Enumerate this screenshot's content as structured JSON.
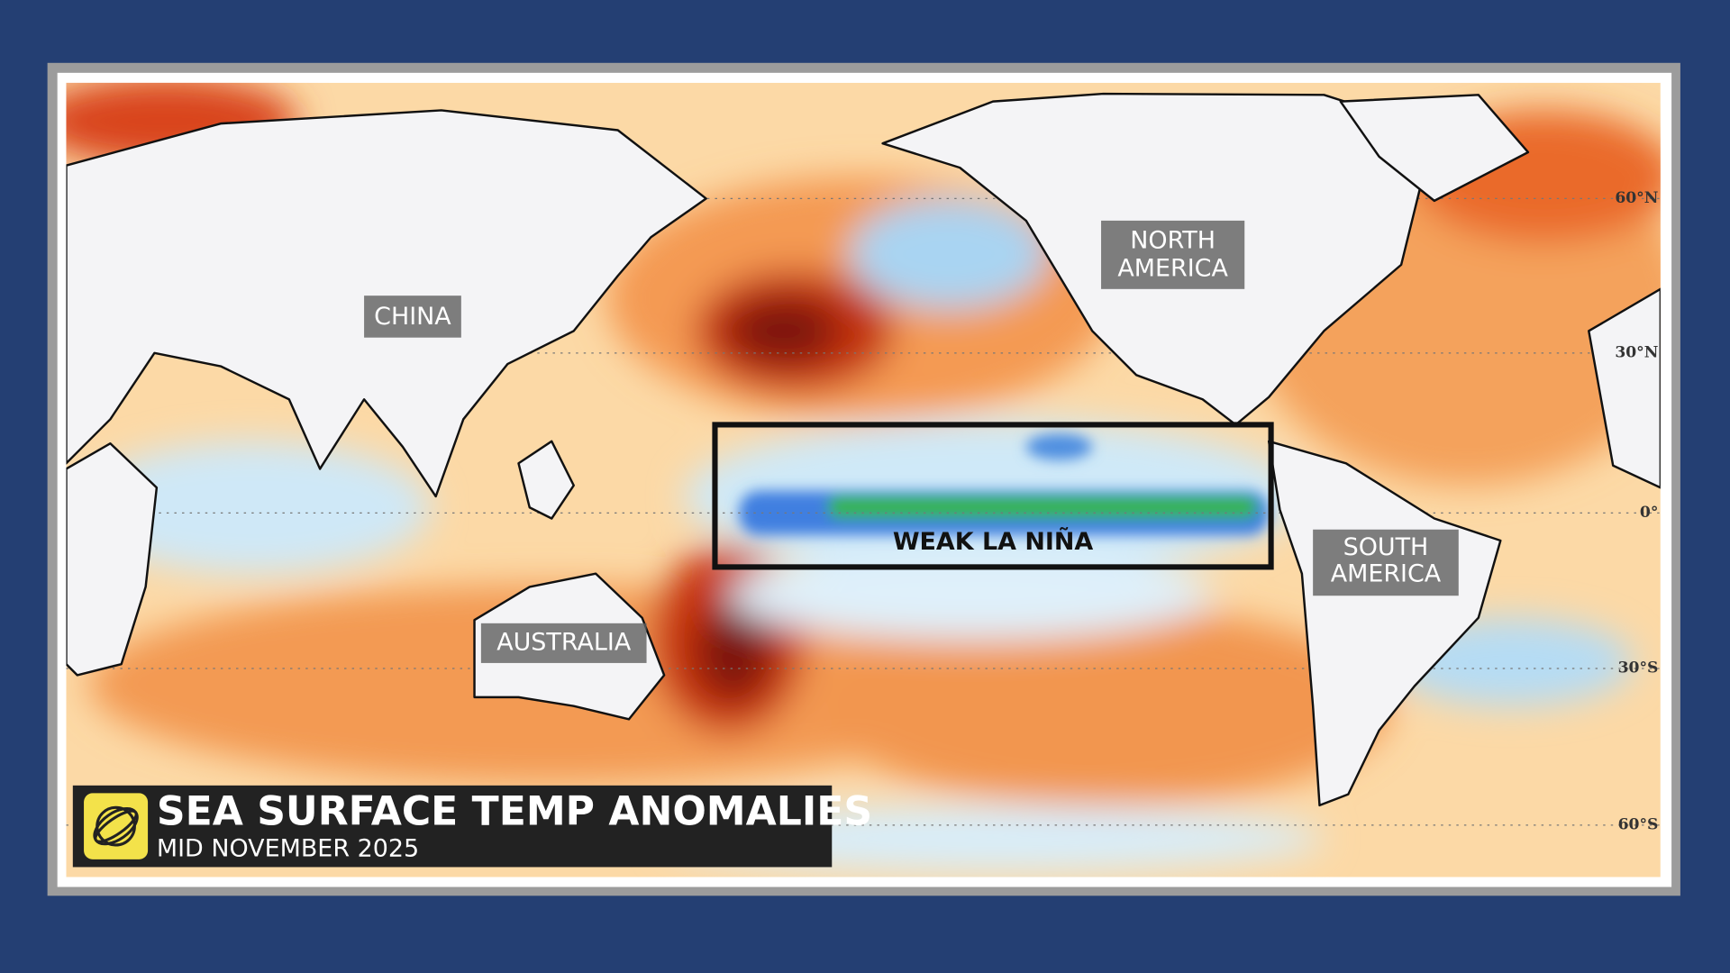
{
  "map": {
    "title": "SEA SURFACE TEMP ANOMALIES",
    "subtitle": "MID NOVEMBER 2025",
    "region_labels": [
      {
        "lines": [
          "CHINA"
        ]
      },
      {
        "lines": [
          "NORTH",
          "AMERICA"
        ]
      },
      {
        "lines": [
          "AUSTRALIA"
        ]
      },
      {
        "lines": [
          "SOUTH",
          "AMERICA"
        ]
      }
    ],
    "highlight_label": "WEAK LA NIÑA",
    "latitude_labels": [
      "60°N",
      "30°N",
      "0°",
      "30°S",
      "60°S"
    ]
  }
}
